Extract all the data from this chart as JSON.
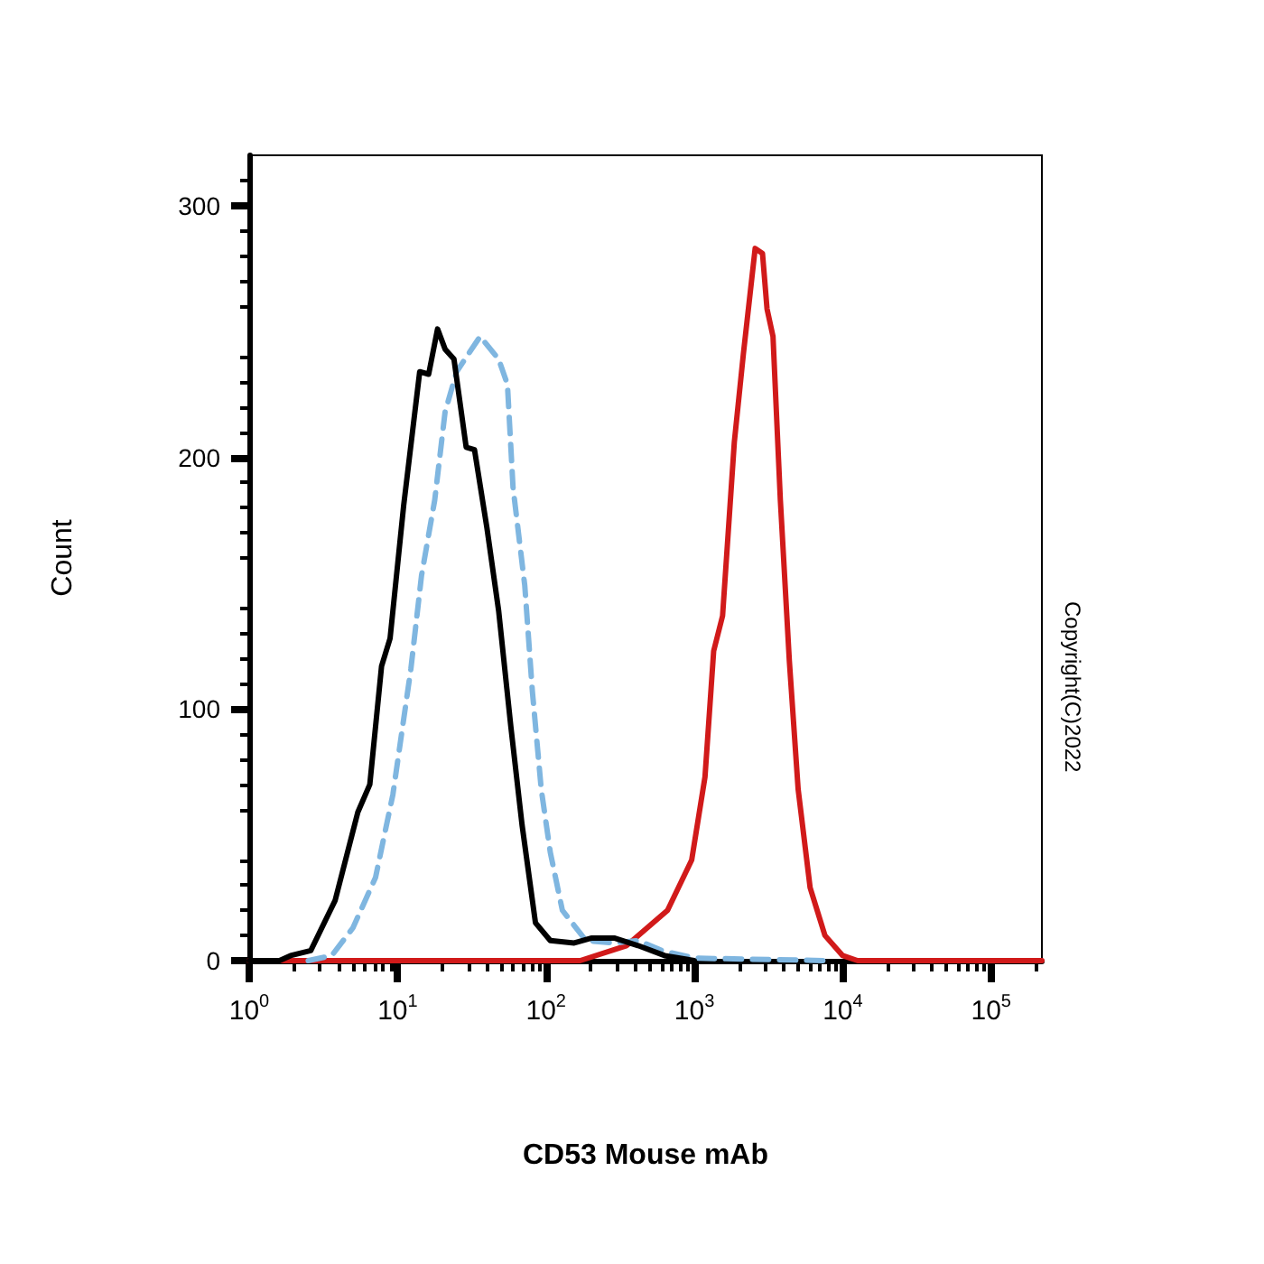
{
  "chart_data": {
    "type": "line",
    "xlabel": "CD53 Mouse mAb",
    "ylabel": "Count",
    "annotations": [
      "Copyright(C)2022"
    ],
    "log": "x",
    "marker": "none",
    "xlim": [
      1,
      220000
    ],
    "ylim": [
      0,
      320
    ],
    "xticks": [
      {
        "value": 1,
        "label": "10$^{0}$"
      },
      {
        "value": 10,
        "label": "10$^{1}$"
      },
      {
        "value": 100,
        "label": "10$^{2}$"
      },
      {
        "value": 1000,
        "label": "10$^{3}$"
      },
      {
        "value": 10000,
        "label": "10$^{4}$"
      },
      {
        "value": 100000,
        "label": "10$^{5}$"
      }
    ],
    "yticks": [
      0,
      100,
      200,
      300
    ],
    "series": [
      {
        "color": "#d11a1a",
        "line_style": "solid",
        "x": [
          1,
          170,
          350,
          660,
          960,
          1180,
          1350,
          1550,
          1860,
          2140,
          2570,
          2880,
          3090,
          3390,
          3800,
          4370,
          5010,
          6030,
          7590,
          10000,
          12600,
          220000
        ],
        "values": [
          0,
          0,
          6,
          20,
          40,
          73,
          123,
          137,
          206,
          241,
          283,
          281,
          259,
          248,
          183,
          119,
          68,
          29,
          10,
          2,
          0,
          0
        ]
      },
      {
        "color": "#7fb6e0",
        "line_style": "dashed",
        "x": [
          2.5,
          3.6,
          5,
          7.1,
          9.3,
          12.3,
          14.5,
          17.8,
          20.9,
          25,
          36,
          48,
          55,
          60,
          72,
          81,
          93,
          107,
          129,
          186,
          288,
          417,
          603,
          1000,
          7940
        ],
        "values": [
          0,
          2,
          13,
          33,
          66,
          116,
          153,
          183,
          218,
          234,
          248,
          239,
          229,
          188,
          149,
          107,
          68,
          43,
          20,
          8,
          7,
          8,
          4,
          1,
          0
        ]
      },
      {
        "color": "#000000",
        "line_style": "solid",
        "x": [
          1,
          1.6,
          1.9,
          2.6,
          3.8,
          5.4,
          6.5,
          7.8,
          8.9,
          11,
          14.1,
          16.2,
          18.6,
          20.9,
          24,
          29,
          33,
          40,
          48,
          58,
          69,
          85,
          107,
          155,
          204,
          288,
          417,
          631,
          1000
        ],
        "values": [
          0,
          0,
          2,
          4,
          24,
          59,
          70,
          117,
          128,
          181,
          234,
          233,
          251,
          243,
          239,
          204,
          203,
          172,
          139,
          93,
          54,
          15,
          8,
          7,
          9,
          9,
          6,
          2,
          0
        ]
      }
    ]
  }
}
